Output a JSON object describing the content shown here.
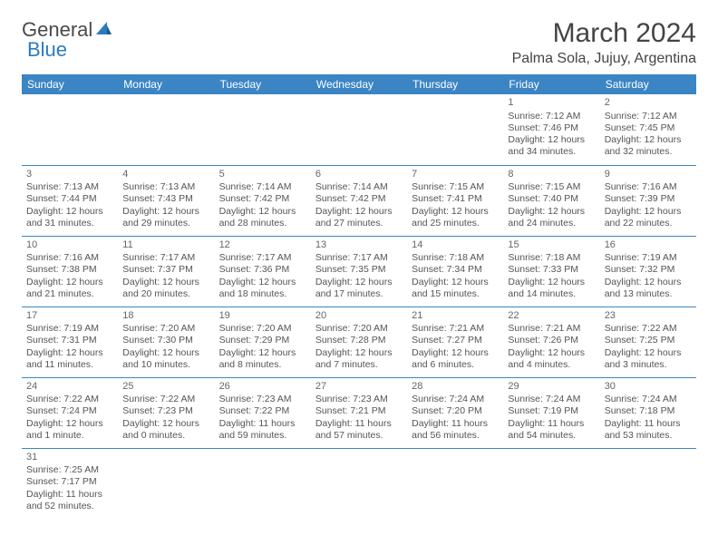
{
  "logo": {
    "text1": "General",
    "text2": "Blue"
  },
  "title": "March 2024",
  "location": "Palma Sola, Jujuy, Argentina",
  "colors": {
    "header_bg": "#3b85c5",
    "header_text": "#ffffff",
    "border": "#3b85c5",
    "text": "#555555",
    "logo_gray": "#4a4a4a",
    "logo_blue": "#2b7bbf"
  },
  "weekdays": [
    "Sunday",
    "Monday",
    "Tuesday",
    "Wednesday",
    "Thursday",
    "Friday",
    "Saturday"
  ],
  "weeks": [
    [
      null,
      null,
      null,
      null,
      null,
      {
        "n": "1",
        "sr": "Sunrise: 7:12 AM",
        "ss": "Sunset: 7:46 PM",
        "dl": "Daylight: 12 hours and 34 minutes."
      },
      {
        "n": "2",
        "sr": "Sunrise: 7:12 AM",
        "ss": "Sunset: 7:45 PM",
        "dl": "Daylight: 12 hours and 32 minutes."
      }
    ],
    [
      {
        "n": "3",
        "sr": "Sunrise: 7:13 AM",
        "ss": "Sunset: 7:44 PM",
        "dl": "Daylight: 12 hours and 31 minutes."
      },
      {
        "n": "4",
        "sr": "Sunrise: 7:13 AM",
        "ss": "Sunset: 7:43 PM",
        "dl": "Daylight: 12 hours and 29 minutes."
      },
      {
        "n": "5",
        "sr": "Sunrise: 7:14 AM",
        "ss": "Sunset: 7:42 PM",
        "dl": "Daylight: 12 hours and 28 minutes."
      },
      {
        "n": "6",
        "sr": "Sunrise: 7:14 AM",
        "ss": "Sunset: 7:42 PM",
        "dl": "Daylight: 12 hours and 27 minutes."
      },
      {
        "n": "7",
        "sr": "Sunrise: 7:15 AM",
        "ss": "Sunset: 7:41 PM",
        "dl": "Daylight: 12 hours and 25 minutes."
      },
      {
        "n": "8",
        "sr": "Sunrise: 7:15 AM",
        "ss": "Sunset: 7:40 PM",
        "dl": "Daylight: 12 hours and 24 minutes."
      },
      {
        "n": "9",
        "sr": "Sunrise: 7:16 AM",
        "ss": "Sunset: 7:39 PM",
        "dl": "Daylight: 12 hours and 22 minutes."
      }
    ],
    [
      {
        "n": "10",
        "sr": "Sunrise: 7:16 AM",
        "ss": "Sunset: 7:38 PM",
        "dl": "Daylight: 12 hours and 21 minutes."
      },
      {
        "n": "11",
        "sr": "Sunrise: 7:17 AM",
        "ss": "Sunset: 7:37 PM",
        "dl": "Daylight: 12 hours and 20 minutes."
      },
      {
        "n": "12",
        "sr": "Sunrise: 7:17 AM",
        "ss": "Sunset: 7:36 PM",
        "dl": "Daylight: 12 hours and 18 minutes."
      },
      {
        "n": "13",
        "sr": "Sunrise: 7:17 AM",
        "ss": "Sunset: 7:35 PM",
        "dl": "Daylight: 12 hours and 17 minutes."
      },
      {
        "n": "14",
        "sr": "Sunrise: 7:18 AM",
        "ss": "Sunset: 7:34 PM",
        "dl": "Daylight: 12 hours and 15 minutes."
      },
      {
        "n": "15",
        "sr": "Sunrise: 7:18 AM",
        "ss": "Sunset: 7:33 PM",
        "dl": "Daylight: 12 hours and 14 minutes."
      },
      {
        "n": "16",
        "sr": "Sunrise: 7:19 AM",
        "ss": "Sunset: 7:32 PM",
        "dl": "Daylight: 12 hours and 13 minutes."
      }
    ],
    [
      {
        "n": "17",
        "sr": "Sunrise: 7:19 AM",
        "ss": "Sunset: 7:31 PM",
        "dl": "Daylight: 12 hours and 11 minutes."
      },
      {
        "n": "18",
        "sr": "Sunrise: 7:20 AM",
        "ss": "Sunset: 7:30 PM",
        "dl": "Daylight: 12 hours and 10 minutes."
      },
      {
        "n": "19",
        "sr": "Sunrise: 7:20 AM",
        "ss": "Sunset: 7:29 PM",
        "dl": "Daylight: 12 hours and 8 minutes."
      },
      {
        "n": "20",
        "sr": "Sunrise: 7:20 AM",
        "ss": "Sunset: 7:28 PM",
        "dl": "Daylight: 12 hours and 7 minutes."
      },
      {
        "n": "21",
        "sr": "Sunrise: 7:21 AM",
        "ss": "Sunset: 7:27 PM",
        "dl": "Daylight: 12 hours and 6 minutes."
      },
      {
        "n": "22",
        "sr": "Sunrise: 7:21 AM",
        "ss": "Sunset: 7:26 PM",
        "dl": "Daylight: 12 hours and 4 minutes."
      },
      {
        "n": "23",
        "sr": "Sunrise: 7:22 AM",
        "ss": "Sunset: 7:25 PM",
        "dl": "Daylight: 12 hours and 3 minutes."
      }
    ],
    [
      {
        "n": "24",
        "sr": "Sunrise: 7:22 AM",
        "ss": "Sunset: 7:24 PM",
        "dl": "Daylight: 12 hours and 1 minute."
      },
      {
        "n": "25",
        "sr": "Sunrise: 7:22 AM",
        "ss": "Sunset: 7:23 PM",
        "dl": "Daylight: 12 hours and 0 minutes."
      },
      {
        "n": "26",
        "sr": "Sunrise: 7:23 AM",
        "ss": "Sunset: 7:22 PM",
        "dl": "Daylight: 11 hours and 59 minutes."
      },
      {
        "n": "27",
        "sr": "Sunrise: 7:23 AM",
        "ss": "Sunset: 7:21 PM",
        "dl": "Daylight: 11 hours and 57 minutes."
      },
      {
        "n": "28",
        "sr": "Sunrise: 7:24 AM",
        "ss": "Sunset: 7:20 PM",
        "dl": "Daylight: 11 hours and 56 minutes."
      },
      {
        "n": "29",
        "sr": "Sunrise: 7:24 AM",
        "ss": "Sunset: 7:19 PM",
        "dl": "Daylight: 11 hours and 54 minutes."
      },
      {
        "n": "30",
        "sr": "Sunrise: 7:24 AM",
        "ss": "Sunset: 7:18 PM",
        "dl": "Daylight: 11 hours and 53 minutes."
      }
    ],
    [
      {
        "n": "31",
        "sr": "Sunrise: 7:25 AM",
        "ss": "Sunset: 7:17 PM",
        "dl": "Daylight: 11 hours and 52 minutes."
      },
      null,
      null,
      null,
      null,
      null,
      null
    ]
  ]
}
